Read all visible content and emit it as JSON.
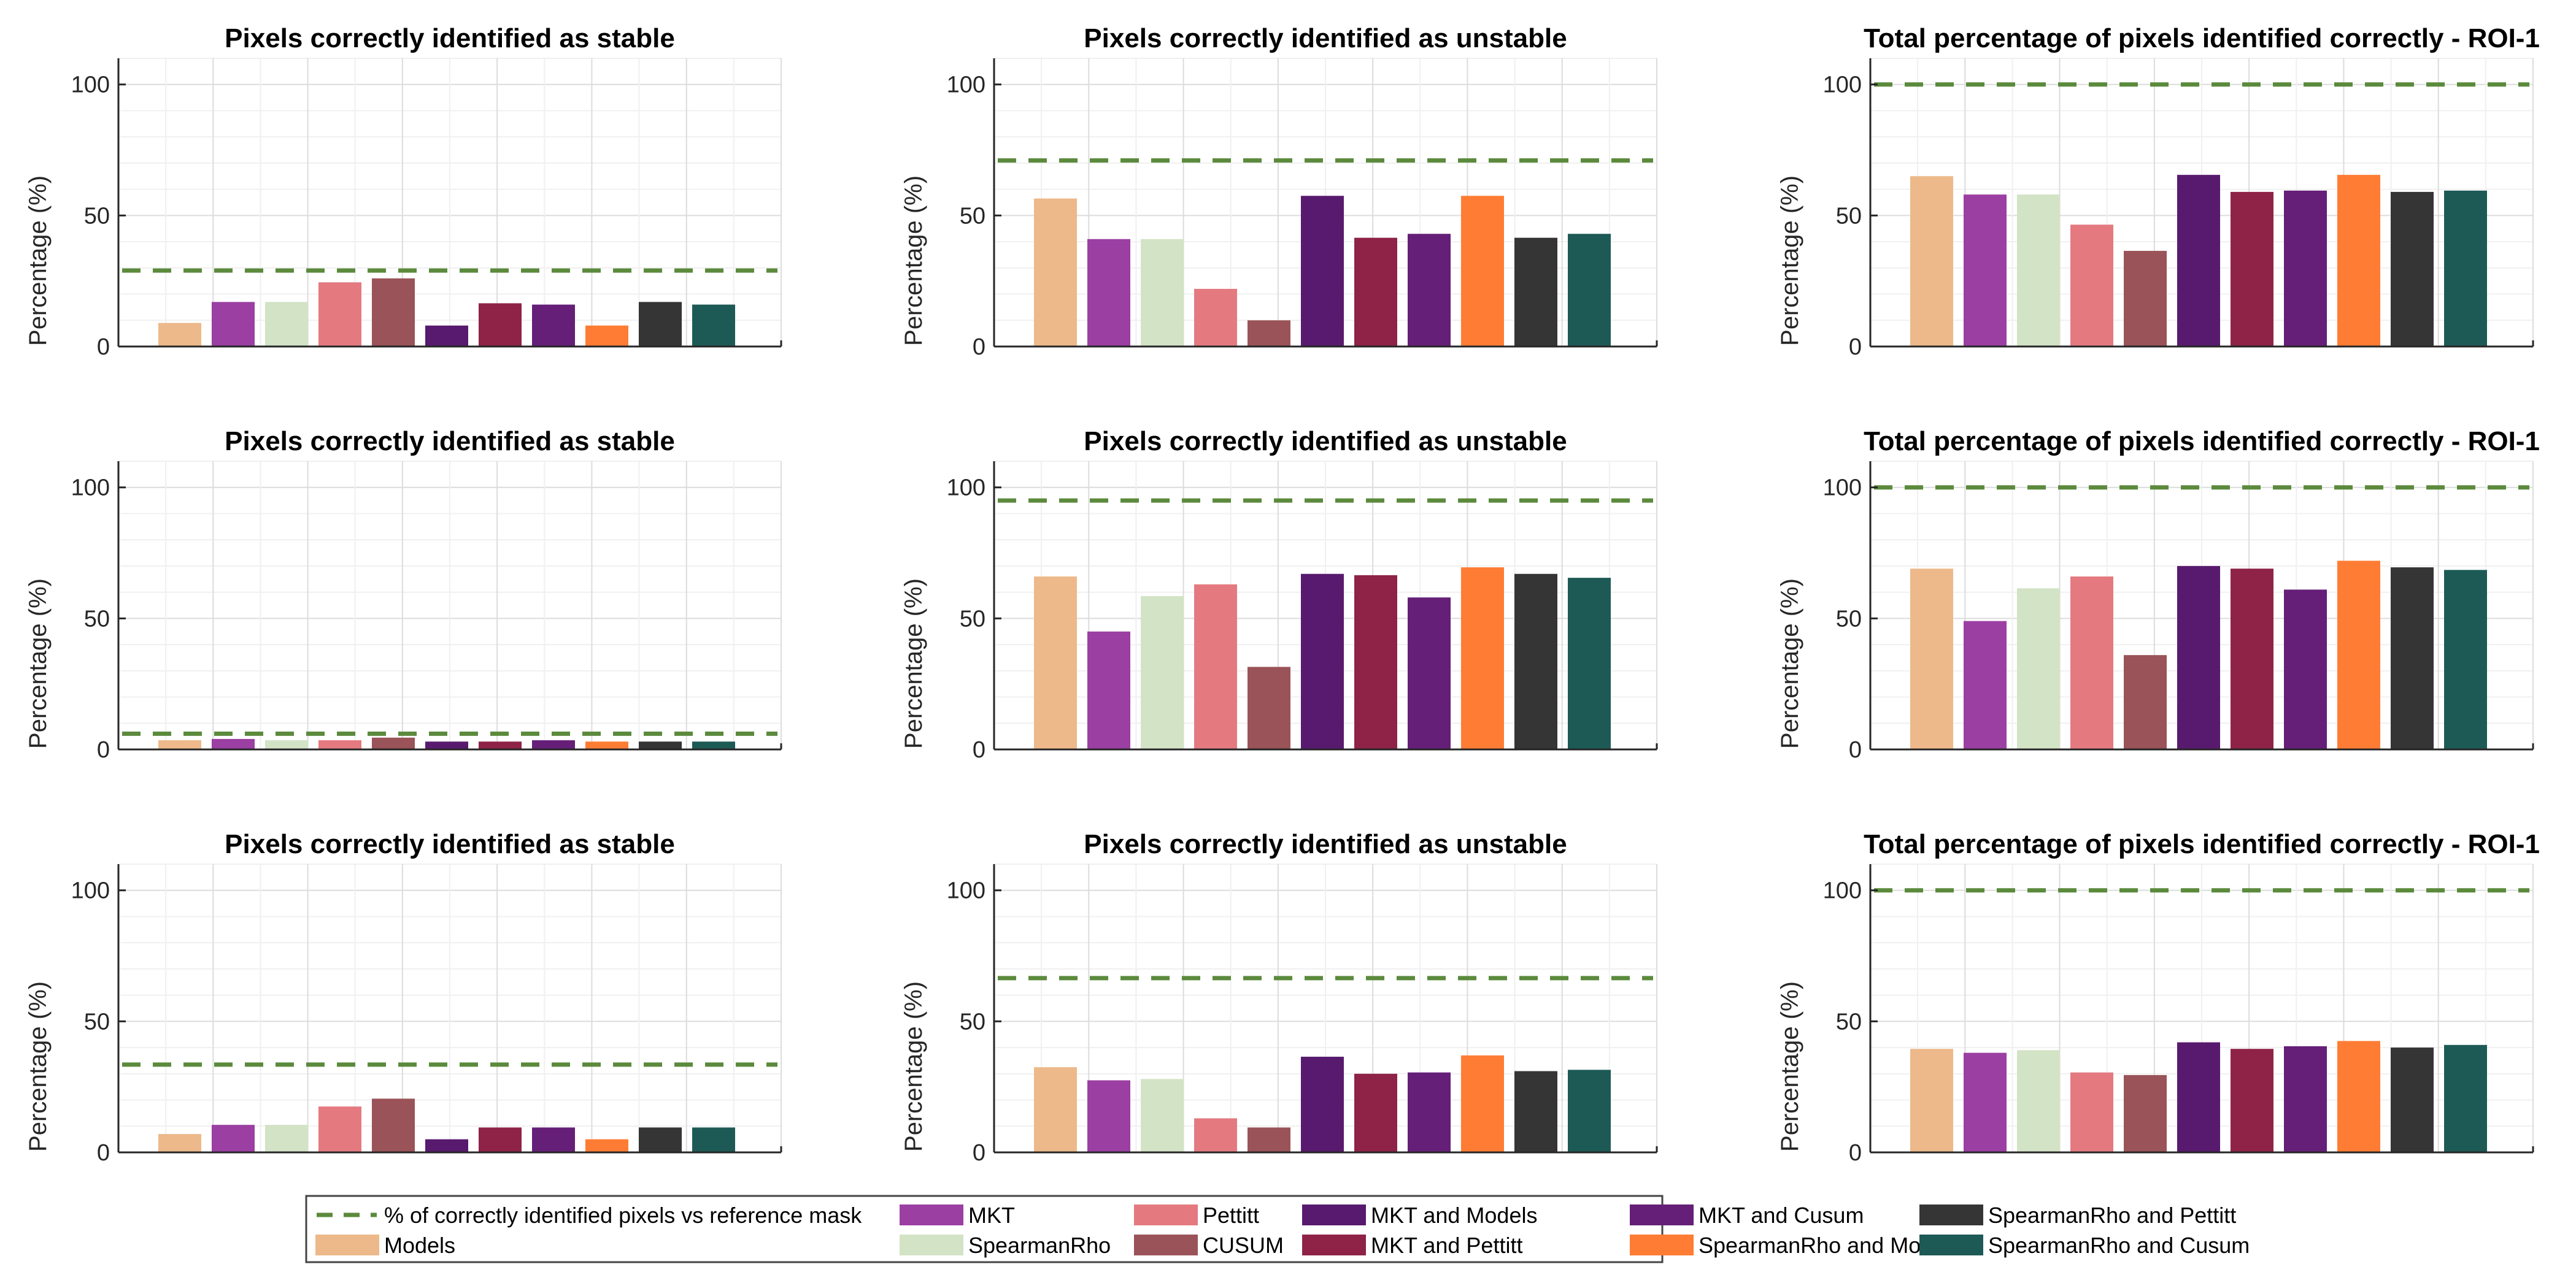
{
  "chart_data": {
    "type": "bar",
    "ylabel": "Percentage (%)",
    "ylim": [
      0,
      110
    ],
    "yticks": [
      0,
      50,
      100
    ],
    "grid": true,
    "categories": [
      "Models",
      "MKT",
      "SpearmanRho",
      "Pettitt",
      "CUSUM",
      "MKT and Models",
      "MKT and Pettitt",
      "MKT and Cusum",
      "SpearmanRho and Models",
      "SpearmanRho and Pettitt",
      "SpearmanRho and Cusum"
    ],
    "colors": [
      "#EDB98A",
      "#9B3FA2",
      "#D3E3C6",
      "#E47A80",
      "#9A5358",
      "#581A6E",
      "#8E2347",
      "#651F78",
      "#FF7C34",
      "#353535",
      "#1D5A56"
    ],
    "reference_color": "#5B8A3C",
    "panels": [
      {
        "title": "Pixels correctly identified as stable",
        "reference": 29,
        "values": [
          9,
          17,
          17,
          24.5,
          26,
          8,
          16.5,
          16,
          8,
          17,
          16
        ]
      },
      {
        "title": "Pixels correctly identified as unstable",
        "reference": 71,
        "values": [
          56.5,
          41,
          41,
          22,
          10,
          57.5,
          41.5,
          43,
          57.5,
          41.5,
          43
        ]
      },
      {
        "title": "Total percentage of pixels identified correctly - ROI-1",
        "reference": 100,
        "values": [
          65,
          58,
          58,
          46.5,
          36.5,
          65.5,
          59,
          59.5,
          65.5,
          59,
          59.5
        ]
      },
      {
        "title": "Pixels correctly identified as stable",
        "reference": 6,
        "values": [
          3.5,
          4,
          3.5,
          3.5,
          4.5,
          3,
          3,
          3.5,
          3,
          3,
          3
        ]
      },
      {
        "title": "Pixels correctly identified as unstable",
        "reference": 95,
        "values": [
          66,
          45,
          58.5,
          63,
          31.5,
          67,
          66.5,
          58,
          69.5,
          67,
          65.5
        ]
      },
      {
        "title": "Total percentage of pixels identified correctly - ROI-1",
        "reference": 100,
        "values": [
          69,
          49,
          61.5,
          66,
          36,
          70,
          69,
          61,
          72,
          69.5,
          68.5
        ]
      },
      {
        "title": "Pixels correctly identified as stable",
        "reference": 33.5,
        "values": [
          7,
          10.5,
          10.5,
          17.5,
          20.5,
          5,
          9.5,
          9.5,
          5,
          9.5,
          9.5
        ]
      },
      {
        "title": "Pixels correctly identified as unstable",
        "reference": 66.5,
        "values": [
          32.5,
          27.5,
          28,
          13,
          9.5,
          36.5,
          30,
          30.5,
          37,
          31,
          31.5
        ]
      },
      {
        "title": "Total percentage of pixels identified correctly - ROI-1",
        "reference": 100,
        "values": [
          39.5,
          38,
          39,
          30.5,
          29.5,
          42,
          39.5,
          40.5,
          42.5,
          40,
          41
        ]
      }
    ],
    "legend": {
      "placement": "bottom-center",
      "reference_label": "% of correctly identified pixels vs reference mask"
    }
  }
}
